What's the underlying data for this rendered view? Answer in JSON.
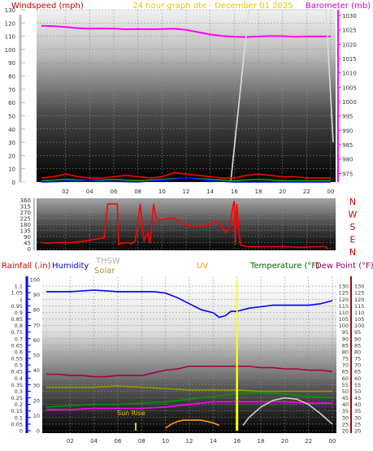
{
  "header": {
    "left_label": "Windspeed (mph)",
    "center_label": "24 hour graph dte - December 01 2025",
    "right_label": "Barometer (mb)"
  },
  "colors": {
    "wind_label": "#cc0000",
    "center_label": "#e6c800",
    "baro_label": "#cc00cc",
    "rain_label": "#cc0000",
    "humidity_label": "#0000cc",
    "thsw_label": "#aaaaaa",
    "solar_label": "#999933",
    "uv_label": "#ff9900",
    "temp_label": "#006600",
    "dew_label": "#990066",
    "compass": "#cc0000",
    "rain_axis": "#0000ff"
  },
  "chart_data": [
    {
      "type": "line",
      "name": "wind-barometer",
      "x_ticks": [
        "02",
        "04",
        "06",
        "08",
        "10",
        "12",
        "14",
        "16",
        "18",
        "20",
        "22",
        "00"
      ],
      "left_axis": {
        "label": "Windspeed (mph)",
        "ylim": [
          0,
          130
        ],
        "ticks": [
          0,
          10,
          20,
          30,
          40,
          50,
          60,
          70,
          80,
          90,
          100,
          110,
          120,
          130
        ]
      },
      "right_axis": {
        "label": "Barometer (mb)",
        "ylim": [
          972,
          1032
        ],
        "ticks": [
          975,
          980,
          985,
          990,
          995,
          1000,
          1005,
          1010,
          1015,
          1020,
          1025,
          1030
        ]
      },
      "series": [
        {
          "axis": "right",
          "color": "#ff00ff",
          "x": [
            0,
            1,
            2,
            3,
            4,
            5,
            6,
            7,
            8,
            9,
            10,
            11,
            12,
            13,
            14,
            15,
            16,
            17,
            18,
            19,
            20,
            21,
            22,
            23,
            24
          ],
          "values": [
            1026.4,
            1026.3,
            1026.0,
            1025.6,
            1025.4,
            1025.5,
            1025.4,
            1025.2,
            1025.3,
            1025.2,
            1025.3,
            1025.4,
            1025.0,
            1024.2,
            1023.4,
            1022.9,
            1022.6,
            1022.5,
            1022.7,
            1022.9,
            1022.8,
            1022.6,
            1022.7,
            1022.7,
            1022.7
          ]
        },
        {
          "axis": "left",
          "color": "#dddddd",
          "x": [
            15.7,
            17.2,
            23.6,
            24.2
          ],
          "values": [
            0,
            130,
            130,
            30
          ]
        },
        {
          "axis": "left",
          "color": "#ff0000",
          "x": [
            0,
            1,
            2,
            3,
            4,
            5,
            6,
            7,
            8,
            9,
            10,
            11,
            12,
            13,
            14,
            15,
            16,
            17,
            18,
            19,
            20,
            21,
            22,
            23,
            24
          ],
          "values": [
            3,
            4,
            6,
            4,
            3,
            3,
            4,
            5,
            4,
            3,
            4,
            7,
            6,
            5,
            4,
            3,
            3,
            5,
            6,
            5,
            4,
            4,
            3,
            3,
            3
          ]
        },
        {
          "axis": "left",
          "color": "#00aa00",
          "x": [
            0,
            2,
            4,
            6,
            8,
            10,
            12,
            14,
            16,
            18,
            20,
            22,
            24
          ],
          "values": [
            1,
            2,
            1,
            2,
            1,
            2,
            3,
            2,
            1,
            2,
            1,
            1,
            1
          ]
        },
        {
          "axis": "left",
          "color": "#0000ff",
          "x": [
            0,
            4,
            8,
            11,
            12,
            13,
            14,
            16,
            20,
            24
          ],
          "values": [
            0,
            1,
            0,
            2,
            3,
            2,
            1,
            0,
            0,
            0
          ]
        }
      ]
    },
    {
      "type": "line",
      "name": "wind-direction",
      "x_ticks": [
        "02",
        "04",
        "06",
        "08",
        "10",
        "12",
        "14",
        "16",
        "18",
        "20",
        "22",
        "00"
      ],
      "left_axis": {
        "ylim": [
          0,
          360
        ],
        "ticks": [
          0,
          45,
          90,
          135,
          180,
          225,
          270,
          315,
          360
        ]
      },
      "compass_labels": [
        "N",
        "W",
        "S",
        "E",
        "N"
      ],
      "series": [
        {
          "color": "#ff0000",
          "x": [
            0,
            0.6,
            1.2,
            2.5,
            3.5,
            4.5,
            5.2,
            5.5,
            5.7,
            6.3,
            6.4,
            6.6,
            7.2,
            7.5,
            7.8,
            8.2,
            8.5,
            8.8,
            9.0,
            9.3,
            9.5,
            9.7,
            10.2,
            11,
            11.6,
            11.8,
            12.3,
            13,
            14,
            14.5,
            15,
            15.3,
            15.6,
            15.9,
            16,
            16.1,
            16.2,
            16.5,
            17,
            18.5,
            20,
            21.5,
            23,
            23.5,
            23.8
          ],
          "values": [
            45,
            40,
            45,
            45,
            55,
            70,
            80,
            330,
            330,
            330,
            30,
            40,
            45,
            35,
            60,
            330,
            60,
            120,
            40,
            330,
            230,
            210,
            220,
            225,
            200,
            180,
            170,
            165,
            180,
            200,
            160,
            120,
            160,
            320,
            350,
            30,
            330,
            30,
            15,
            15,
            15,
            10,
            15,
            15,
            0
          ]
        }
      ]
    },
    {
      "type": "line",
      "name": "rain-humidity-temperature",
      "legend": [
        "Rainfall (.in)",
        "Humidity",
        "THSW",
        "Solar",
        "UV",
        "Temperature (°F)",
        "Dew Point (°F)"
      ],
      "x_ticks": [
        "02",
        "04",
        "06",
        "08",
        "10",
        "12",
        "14",
        "16",
        "18",
        "20",
        "22",
        "00"
      ],
      "left_axis": {
        "label": "Rainfall (.in)",
        "ylim": [
          0,
          1.15
        ],
        "ticks": [
          "0",
          "0.05",
          "0.1",
          "0.15",
          "0.2",
          "0.25",
          "0.3",
          "0.35",
          "0.4",
          "0.45",
          "0.5",
          "0.55",
          "0.6",
          "0.65",
          "0.7",
          "0.75",
          "0.8",
          "0.85",
          "0.9",
          "0.95",
          "1",
          "1.05",
          "1.1"
        ]
      },
      "right_axis": {
        "ylim": [
          20,
          135
        ],
        "ticks": [
          20,
          25,
          30,
          35,
          40,
          45,
          50,
          55,
          60,
          65,
          70,
          75,
          80,
          85,
          90,
          95,
          100,
          105,
          110,
          115,
          120,
          125,
          130
        ]
      },
      "mid_axis": {
        "ylim": [
          0,
          100
        ],
        "ticks": [
          0,
          10,
          20,
          30,
          40,
          50,
          60,
          70,
          80,
          90,
          100
        ]
      },
      "annotation": "Sun Rise",
      "series": [
        {
          "name": "Humidity",
          "axis": "mid",
          "color": "#0000ff",
          "x": [
            0,
            2,
            4,
            6,
            7,
            8,
            9,
            10,
            11,
            12,
            13,
            14,
            14.5,
            15,
            15.5,
            16,
            17,
            18,
            19,
            20,
            21,
            22,
            23,
            23.5,
            24
          ],
          "values": [
            92,
            92,
            93,
            92,
            92,
            92,
            92,
            91,
            88,
            84,
            80,
            78,
            75,
            76,
            79,
            79,
            81,
            82,
            83,
            83,
            83,
            83,
            84,
            85,
            86
          ]
        },
        {
          "name": "Temperature (°F)",
          "axis": "right",
          "color": "#aa0044",
          "x": [
            0,
            1,
            2,
            3,
            4,
            5,
            6,
            7,
            8,
            9,
            10,
            11,
            12,
            13,
            14,
            15,
            16,
            17,
            18,
            19,
            20,
            21,
            22,
            23,
            24
          ],
          "values": [
            63,
            63,
            62,
            62,
            61,
            61,
            62,
            62,
            62,
            64,
            66,
            67,
            69,
            69,
            69,
            69,
            69,
            69,
            68,
            68,
            67,
            67,
            66,
            66,
            65
          ]
        },
        {
          "name": "THSW",
          "axis": "right",
          "color": "#999900",
          "x": [
            0,
            2,
            4,
            6,
            8,
            10,
            12,
            14,
            16,
            18,
            20,
            22,
            24
          ],
          "values": [
            53,
            53,
            53,
            54,
            53,
            52,
            51,
            51,
            51,
            50,
            50,
            50,
            50
          ]
        },
        {
          "name": "Dew Point (°F)",
          "axis": "right",
          "color": "#009900",
          "x": [
            0,
            2,
            4,
            6,
            8,
            10,
            12,
            14,
            16,
            18,
            20,
            22,
            24
          ],
          "values": [
            38,
            39,
            40,
            40,
            41,
            42,
            44,
            46,
            48,
            49,
            48,
            46,
            45
          ]
        },
        {
          "name": "Dew Point (°F)",
          "axis": "right",
          "color": "#ff00ff",
          "x": [
            0,
            2,
            4,
            6,
            8,
            10,
            12,
            14,
            16,
            18,
            20,
            22,
            24
          ],
          "values": [
            36,
            36,
            37,
            37,
            37,
            38,
            40,
            42,
            42,
            42,
            42,
            41,
            41
          ]
        },
        {
          "name": "Solar",
          "axis": "right",
          "color": "#cccccc",
          "x": [
            16.5,
            17,
            18,
            19,
            20,
            21,
            22,
            23,
            24
          ],
          "values": [
            24,
            30,
            38,
            43,
            45,
            44,
            40,
            33,
            25
          ]
        },
        {
          "name": "UV",
          "axis": "right",
          "color": "#ff9900",
          "x": [
            10,
            10.5,
            11,
            11.5,
            12,
            12.5,
            13,
            13.5,
            14,
            14.5
          ],
          "values": [
            22,
            25,
            27,
            28,
            28,
            28,
            28,
            27,
            26,
            24
          ]
        },
        {
          "name": "UV",
          "axis": "right",
          "color": "#ffff00",
          "x": [
            15.95,
            16,
            16.05
          ],
          "values": [
            20,
            135,
            20
          ]
        },
        {
          "name": "Sun Rise",
          "axis": "right",
          "color": "#ffff00",
          "x": [
            7.5,
            7.5
          ],
          "values": [
            20,
            26
          ]
        }
      ]
    }
  ]
}
